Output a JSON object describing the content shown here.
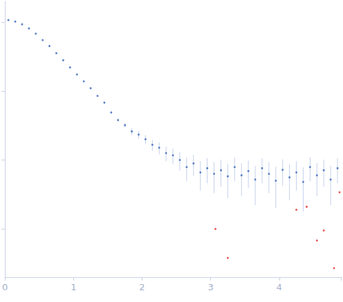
{
  "chart_data": {
    "type": "scatter",
    "log": "y",
    "grid": false,
    "tick_labels": "x",
    "xlim": [
      0,
      4.9
    ],
    "xticks": [
      0,
      1,
      2,
      3,
      4
    ],
    "ylim": [
      0.0002,
      2
    ],
    "yticks": [
      0.001,
      0.01,
      0.1,
      1
    ],
    "series": [
      {
        "color": "#3a66b8",
        "marker": "circle",
        "x": [
          0.05,
          0.15,
          0.25,
          0.35,
          0.45,
          0.55,
          0.65,
          0.75,
          0.85,
          0.95,
          1.05,
          1.15,
          1.25,
          1.35,
          1.45,
          1.55,
          1.65,
          1.75,
          1.85,
          1.95,
          2.05,
          2.15,
          2.25,
          2.35,
          2.45,
          2.55,
          2.65,
          2.75,
          2.85,
          2.95,
          3.05,
          3.15,
          3.25,
          3.35,
          3.45,
          3.55,
          3.65,
          3.75,
          3.85,
          3.95,
          4.05,
          4.15,
          4.25,
          4.35,
          4.45,
          4.55,
          4.65,
          4.75,
          4.85
        ],
        "values": [
          1.07,
          1.02,
          0.93,
          0.81,
          0.68,
          0.55,
          0.45,
          0.355,
          0.28,
          0.22,
          0.174,
          0.138,
          0.11,
          0.085,
          0.068,
          0.049,
          0.038,
          0.032,
          0.026,
          0.0234,
          0.02,
          0.0166,
          0.0151,
          0.0126,
          0.0117,
          0.01,
          0.0079,
          0.0089,
          0.0066,
          0.0076,
          0.0063,
          0.0071,
          0.0058,
          0.0079,
          0.006,
          0.0069,
          0.0052,
          0.0076,
          0.0063,
          0.005,
          0.0072,
          0.0056,
          0.0066,
          0.0048,
          0.0079,
          0.006,
          0.0071,
          0.0052,
          0.0076
        ],
        "errors": [
          0.005,
          0.004,
          0.004,
          0.003,
          0.003,
          0.003,
          0.002,
          0.002,
          0.002,
          0.002,
          0.002,
          0.002,
          0.002,
          0.002,
          0.002,
          0.002,
          0.002,
          0.002,
          0.003,
          0.003,
          0.003,
          0.003,
          0.003,
          0.003,
          0.003,
          0.003,
          0.003,
          0.003,
          0.003,
          0.003,
          0.003,
          0.003,
          0.003,
          0.003,
          0.003,
          0.003,
          0.003,
          0.003,
          0.003,
          0.003,
          0.003,
          0.003,
          0.003,
          0.003,
          0.003,
          0.003,
          0.003,
          0.003,
          0.003
        ]
      },
      {
        "color": "#e03030",
        "marker": "circle",
        "x": [
          3.07,
          3.25,
          4.25,
          4.4,
          4.55,
          4.65,
          4.8,
          4.88
        ],
        "values": [
          0.001,
          0.00038,
          0.0019,
          0.0021,
          0.00068,
          0.00095,
          0.00027,
          0.0034
        ]
      }
    ]
  }
}
